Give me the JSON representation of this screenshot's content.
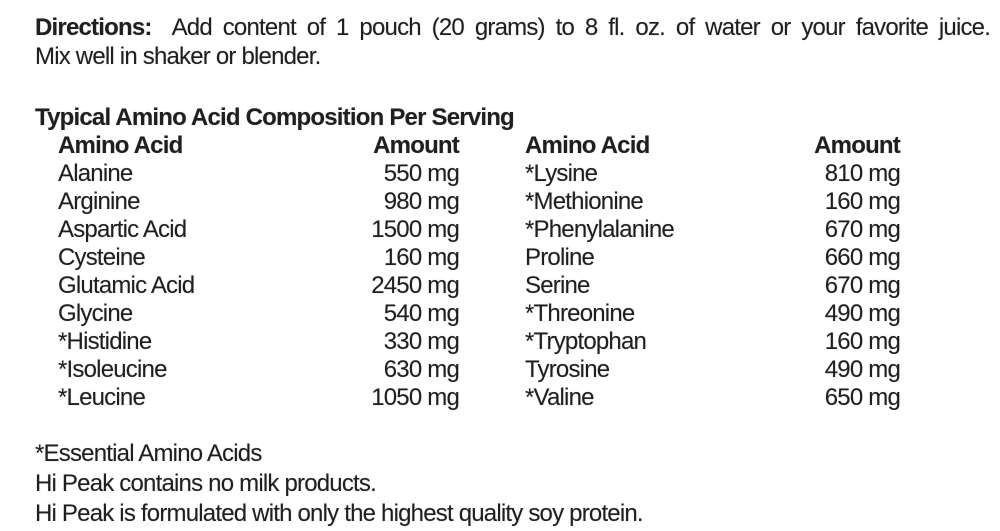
{
  "directions": {
    "label": "Directions:",
    "text_line1": "Add content of 1 pouch (20 grams) to 8 fl. oz. of water or your favorite juice.",
    "text_line2": "Mix well in shaker or blender."
  },
  "table": {
    "heading": "Typical Amino Acid Composition Per Serving",
    "amino_acid_header": "Amino Acid",
    "amount_header": "Amount",
    "left_column": [
      {
        "name": "Alanine",
        "amount": "550 mg"
      },
      {
        "name": "Arginine",
        "amount": "980 mg"
      },
      {
        "name": "Aspartic Acid",
        "amount": "1500 mg"
      },
      {
        "name": "Cysteine",
        "amount": "160 mg"
      },
      {
        "name": "Glutamic Acid",
        "amount": "2450 mg"
      },
      {
        "name": "Glycine",
        "amount": "540 mg"
      },
      {
        "name": "*Histidine",
        "amount": "330 mg"
      },
      {
        "name": "*Isoleucine",
        "amount": "630 mg"
      },
      {
        "name": "*Leucine",
        "amount": "1050 mg"
      }
    ],
    "right_column": [
      {
        "name": "*Lysine",
        "amount": "810 mg"
      },
      {
        "name": "*Methionine",
        "amount": "160 mg"
      },
      {
        "name": "*Phenylalanine",
        "amount": "670 mg"
      },
      {
        "name": "Proline",
        "amount": "660 mg"
      },
      {
        "name": "Serine",
        "amount": "670 mg"
      },
      {
        "name": "*Threonine",
        "amount": "490 mg"
      },
      {
        "name": "*Tryptophan",
        "amount": "160 mg"
      },
      {
        "name": "Tyrosine",
        "amount": "490 mg"
      },
      {
        "name": "*Valine",
        "amount": "650 mg"
      }
    ]
  },
  "footnotes": {
    "essential_note": "*Essential Amino Acids",
    "milk_note": "Hi Peak contains no milk products.",
    "soy_note": "Hi Peak is formulated with only the highest quality soy protein."
  },
  "colors": {
    "text": "#1f1f1f",
    "background": "#ffffff"
  }
}
